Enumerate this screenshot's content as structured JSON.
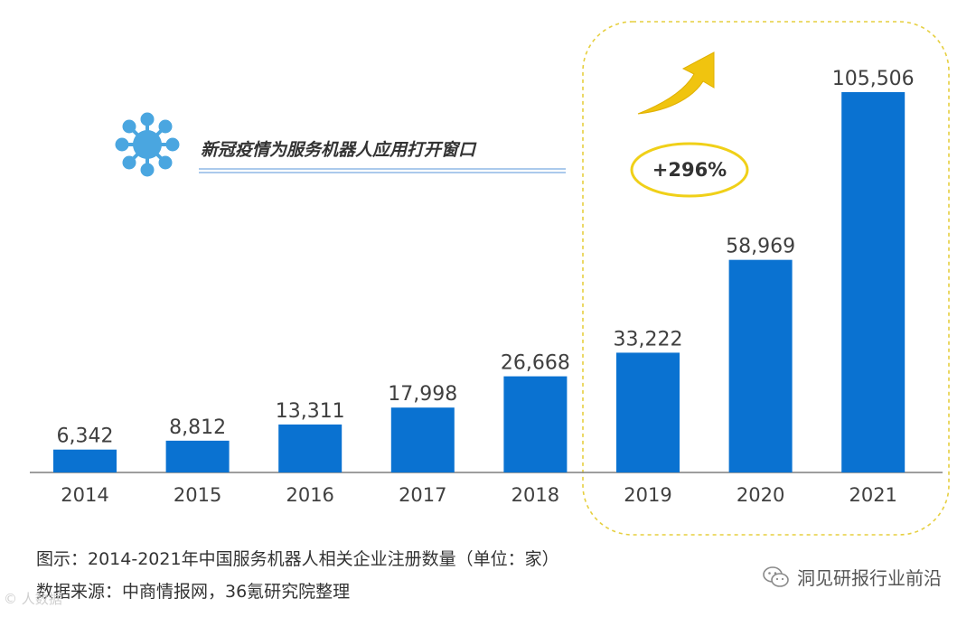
{
  "chart_data": {
    "type": "bar",
    "categories": [
      "2014",
      "2015",
      "2016",
      "2017",
      "2018",
      "2019",
      "2020",
      "2021"
    ],
    "values": [
      6342,
      8812,
      13311,
      17998,
      26668,
      33222,
      58969,
      105506
    ],
    "value_labels": [
      "6,342",
      "8,812",
      "13,311",
      "17,998",
      "26,668",
      "33,222",
      "58,969",
      "105,506"
    ],
    "ylim": [
      0,
      110000
    ],
    "bar_color": "#0a72d1",
    "grid": false,
    "legend": "none",
    "callout": "新冠疫情为服务机器人应用打开窗口",
    "highlight_range": [
      "2019",
      "2021"
    ],
    "growth_annotation": "+296%"
  },
  "caption": "图示：2014-2021年中国服务机器人相关企业注册数量（单位：家）",
  "source": "数据来源：中商情报网，36氪研究院整理",
  "watermark": "洞见研报行业前沿",
  "corner_mark": "© 人数据",
  "colors": {
    "bar": "#0a72d1",
    "virus_icon": "#4aa6e0",
    "highlight_border": "#e6cf3f",
    "arrow": "#f0c40f",
    "ellipse": "#f0d018",
    "underline": "#8fb9e6"
  }
}
